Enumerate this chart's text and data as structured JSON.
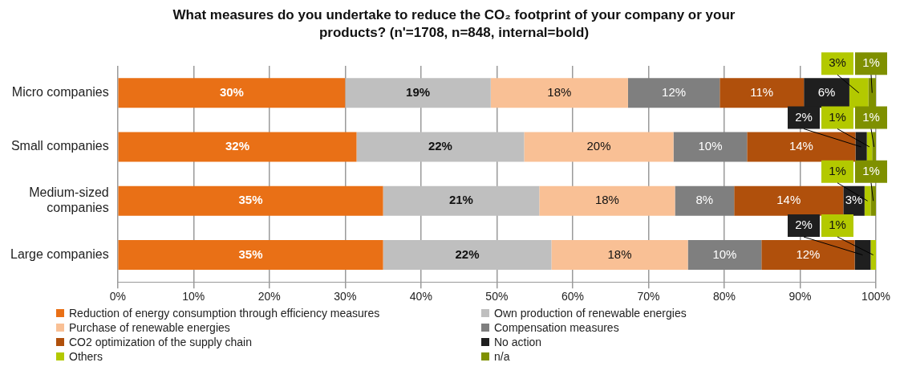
{
  "chart_data": {
    "type": "bar",
    "orientation": "horizontal",
    "stacked": true,
    "title": "What measures do you undertake to reduce the CO₂ footprint of your company or your products? (n'=1708, n=848, internal=bold)",
    "categories": [
      "Micro companies",
      "Small companies",
      "Medium-sized companies",
      "Large companies"
    ],
    "xlim": [
      0,
      100
    ],
    "xticks": [
      {
        "value": 0,
        "label": "0%"
      },
      {
        "value": 10,
        "label": "10%"
      },
      {
        "value": 20,
        "label": "20%"
      },
      {
        "value": 30,
        "label": "30%"
      },
      {
        "value": 40,
        "label": "40%"
      },
      {
        "value": 50,
        "label": "50%"
      },
      {
        "value": 60,
        "label": "60%"
      },
      {
        "value": 70,
        "label": "70%"
      },
      {
        "value": 80,
        "label": "80%"
      },
      {
        "value": 90,
        "label": "90%"
      },
      {
        "value": 100,
        "label": "100%"
      }
    ],
    "grid": "x",
    "legend": "bottom",
    "series": [
      {
        "name": "Reduction of energy consumption through efficiency measures",
        "color": "#e97016",
        "values": [
          30,
          31.5,
          35,
          35
        ],
        "value_labels": [
          "30%",
          "32%",
          "35%",
          "35%"
        ]
      },
      {
        "name": "Own production of renewable energies",
        "color": "#bfbfbf",
        "values": [
          19.2,
          22.1,
          20.6,
          22.2
        ],
        "value_labels": [
          "19%",
          "22%",
          "21%",
          "22%"
        ]
      },
      {
        "name": "Purchase of renewable energies",
        "color": "#f9c095",
        "values": [
          18.1,
          19.7,
          17.9,
          18
        ],
        "value_labels": [
          "18%",
          "20%",
          "18%",
          "18%"
        ]
      },
      {
        "name": "Compensation measures",
        "color": "#7f7f7f",
        "values": [
          12.1,
          9.7,
          7.8,
          9.7
        ],
        "value_labels": [
          "12%",
          "10%",
          "8%",
          "10%"
        ]
      },
      {
        "name": "CO2 optimization of the supply chain",
        "color": "#b0500c",
        "values": [
          11.1,
          14.3,
          14.4,
          12.3
        ],
        "value_labels": [
          "11%",
          "14%",
          "14%",
          "12%"
        ]
      },
      {
        "name": "No action",
        "color": "#1f1f1f",
        "values": [
          6,
          1.5,
          2.8,
          2.1
        ],
        "value_labels": [
          "6%",
          "2%",
          "3%",
          "2%"
        ]
      },
      {
        "name": "Others",
        "color": "#b3c900",
        "values": [
          2.5,
          0.7,
          0.8,
          0.7
        ],
        "value_labels": [
          "3%",
          "1%",
          "1%",
          "1%"
        ]
      },
      {
        "name": "n/a",
        "color": "#7f9000",
        "values": [
          1,
          0.5,
          0.7,
          null
        ],
        "value_labels": [
          "1%",
          "1%",
          "1%",
          null
        ]
      }
    ]
  }
}
